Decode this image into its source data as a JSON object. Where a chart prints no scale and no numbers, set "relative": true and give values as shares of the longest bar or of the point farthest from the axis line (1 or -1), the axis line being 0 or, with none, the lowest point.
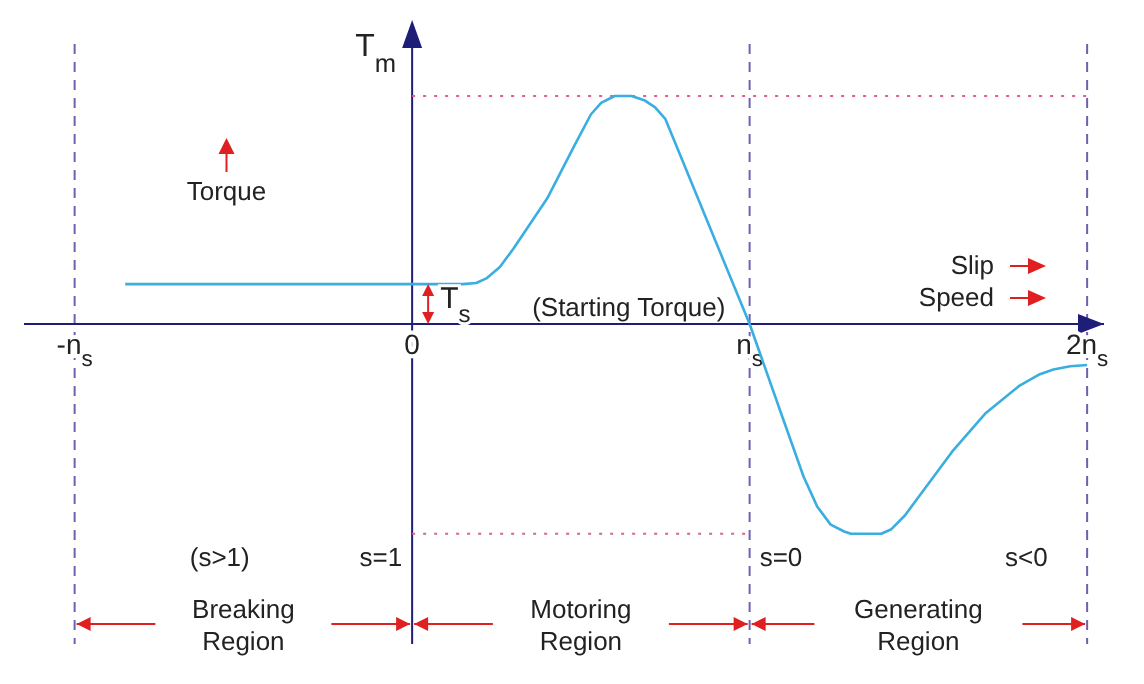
{
  "chart_data": {
    "type": "line",
    "relative": true,
    "ylabel": "T$_{m}$",
    "xlim": [
      -1.15,
      2.05
    ],
    "xticks": [
      {
        "value": -1,
        "label": "-n$_{s}$"
      },
      {
        "value": 0,
        "label": "0"
      },
      {
        "value": 1,
        "label": "n$_{s}$"
      },
      {
        "value": 2,
        "label": "2n$_{s}$"
      }
    ],
    "series": [
      {
        "color": "#3aaee0",
        "x": [
          -0.85,
          0,
          0.15,
          0.19,
          0.22,
          0.26,
          0.3,
          0.4,
          0.48,
          0.53,
          0.56,
          0.6,
          0.65,
          0.69,
          0.72,
          0.75,
          0.8,
          0.9,
          1,
          1.1,
          1.16,
          1.2,
          1.24,
          1.28,
          1.3,
          1.36,
          1.39,
          1.42,
          1.46,
          1.5,
          1.6,
          1.7,
          1.8,
          1.86,
          1.9,
          1.95,
          2
        ],
        "values": [
          0.175,
          0.175,
          0.175,
          0.18,
          0.2,
          0.25,
          0.33,
          0.55,
          0.78,
          0.92,
          0.97,
          1,
          1,
          0.98,
          0.95,
          0.9,
          0.72,
          0.36,
          0,
          -0.42,
          -0.67,
          -0.8,
          -0.88,
          -0.91,
          -0.92,
          -0.92,
          -0.92,
          -0.9,
          -0.84,
          -0.76,
          -0.56,
          -0.39,
          -0.27,
          -0.22,
          -0.2,
          -0.185,
          -0.18
        ]
      }
    ],
    "ref_lines": [
      {
        "axis": "x",
        "value": 0,
        "color": "#1e1e78",
        "line_style": "solid"
      },
      {
        "axis": "x",
        "value": -1,
        "color": "#7060b0",
        "line_style": "dashed"
      },
      {
        "axis": "x",
        "value": 1,
        "color": "#7060b0",
        "line_style": "dashed"
      },
      {
        "axis": "x",
        "value": 2,
        "color": "#7060b0",
        "line_style": "dashed"
      },
      {
        "axis": "y",
        "value": 1,
        "color": "#e0608a",
        "line_style": "dotted"
      },
      {
        "axis": "y",
        "value": -0.92,
        "color": "#e0608a",
        "line_style": "dotted"
      }
    ],
    "annotations": [
      "T$_{s}$",
      "(Starting Torque)",
      "Torque",
      "Slip",
      "Speed",
      "(s>1)",
      "s=1",
      "s=0",
      "s<0",
      "Breaking Region",
      "Motoring Region",
      "Generating Region"
    ],
    "line_style": "solid"
  }
}
